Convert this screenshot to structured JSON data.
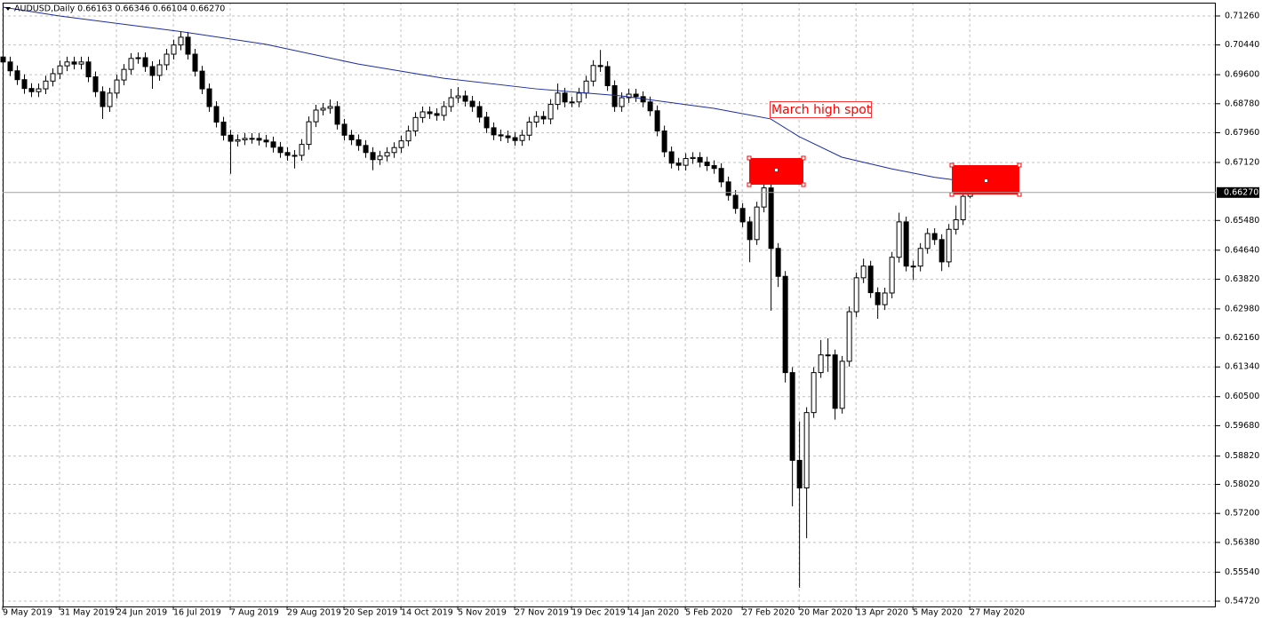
{
  "chart_data": {
    "type": "candlestick",
    "title": "AUDUSD,Daily  0.66163 0.66346 0.66104 0.66270",
    "annotation": "March high  spot",
    "open": [
      0.701,
      0.6996,
      0.6971,
      0.6946,
      0.6921,
      0.6912,
      0.692,
      0.6942,
      0.6963,
      0.6985,
      0.6996,
      0.699,
      0.6996,
      0.6954,
      0.6912,
      0.687,
      0.6908,
      0.6945,
      0.6975,
      0.7006,
      0.7008,
      0.6983,
      0.6958,
      0.6988,
      0.7018,
      0.7044,
      0.7066,
      0.7018,
      0.697,
      0.692,
      0.687,
      0.6826,
      0.6789,
      0.6772,
      0.6776,
      0.678,
      0.678,
      0.6775,
      0.677,
      0.6755,
      0.674,
      0.6732,
      0.6732,
      0.6763,
      0.6827,
      0.686,
      0.6865,
      0.687,
      0.682,
      0.6789,
      0.6776,
      0.676,
      0.674,
      0.672,
      0.673,
      0.674,
      0.6754,
      0.6773,
      0.6801,
      0.6839,
      0.6855,
      0.685,
      0.6845,
      0.687,
      0.6895,
      0.69,
      0.6885,
      0.687,
      0.684,
      0.681,
      0.679,
      0.6787,
      0.6782,
      0.6774,
      0.6789,
      0.6826,
      0.6842,
      0.6835,
      0.6876,
      0.6908,
      0.6883,
      0.6883,
      0.6908,
      0.6942,
      0.6986,
      0.6983,
      0.6929,
      0.687,
      0.6895,
      0.6905,
      0.6898,
      0.6883,
      0.6858,
      0.6801,
      0.6742,
      0.671,
      0.6704,
      0.6723,
      0.6726,
      0.6713,
      0.6703,
      0.6695,
      0.6657,
      0.6619,
      0.6582,
      0.6544,
      0.6494,
      0.6586,
      0.664,
      0.6469,
      0.639,
      0.6118,
      0.587,
      0.5792,
      0.6005,
      0.6118,
      0.6168,
      0.6168,
      0.6017,
      0.615,
      0.629,
      0.6386,
      0.6419,
      0.6344,
      0.631,
      0.6343,
      0.6444,
      0.6544,
      0.6419,
      0.6419,
      0.6469,
      0.6511,
      0.6494,
      0.6431,
      0.6523,
      0.655,
      0.66163
    ],
    "high": [
      0.7025,
      0.7011,
      0.6986,
      0.6961,
      0.6936,
      0.6935,
      0.6957,
      0.6978,
      0.7,
      0.7011,
      0.7011,
      0.7011,
      0.7011,
      0.6969,
      0.6927,
      0.6923,
      0.696,
      0.699,
      0.7021,
      0.7023,
      0.7023,
      0.6998,
      0.7003,
      0.7033,
      0.7059,
      0.7081,
      0.7081,
      0.7033,
      0.6985,
      0.6935,
      0.6885,
      0.6841,
      0.6804,
      0.6791,
      0.6795,
      0.6795,
      0.6795,
      0.679,
      0.6785,
      0.677,
      0.6755,
      0.6747,
      0.6778,
      0.6842,
      0.6875,
      0.688,
      0.689,
      0.6885,
      0.6835,
      0.6804,
      0.6791,
      0.6775,
      0.6755,
      0.6745,
      0.6755,
      0.6769,
      0.6788,
      0.6816,
      0.6854,
      0.687,
      0.687,
      0.6865,
      0.6885,
      0.692,
      0.6925,
      0.6915,
      0.69,
      0.6885,
      0.6855,
      0.6825,
      0.6805,
      0.6802,
      0.6797,
      0.6804,
      0.6841,
      0.6857,
      0.6857,
      0.6891,
      0.6935,
      0.6923,
      0.6898,
      0.6923,
      0.6957,
      0.7001,
      0.703,
      0.6998,
      0.6944,
      0.691,
      0.692,
      0.692,
      0.6913,
      0.6898,
      0.6873,
      0.6816,
      0.6757,
      0.6725,
      0.6738,
      0.6741,
      0.6741,
      0.6728,
      0.6718,
      0.671,
      0.6672,
      0.6634,
      0.6597,
      0.6559,
      0.6601,
      0.669,
      0.6655,
      0.6484,
      0.6405,
      0.6133,
      0.598,
      0.602,
      0.6133,
      0.621,
      0.6215,
      0.6183,
      0.6165,
      0.6305,
      0.6401,
      0.644,
      0.6434,
      0.6359,
      0.6358,
      0.6459,
      0.657,
      0.6559,
      0.6434,
      0.6484,
      0.6526,
      0.6526,
      0.6509,
      0.6538,
      0.659,
      0.67,
      0.66346
    ],
    "low": [
      0.6981,
      0.6956,
      0.6931,
      0.6906,
      0.6897,
      0.6897,
      0.6905,
      0.6927,
      0.6948,
      0.697,
      0.6975,
      0.6975,
      0.6939,
      0.6897,
      0.6835,
      0.6855,
      0.6893,
      0.693,
      0.696,
      0.6991,
      0.6968,
      0.692,
      0.6943,
      0.6973,
      0.7003,
      0.7029,
      0.7003,
      0.6955,
      0.6905,
      0.6855,
      0.6811,
      0.6774,
      0.668,
      0.6757,
      0.6761,
      0.6765,
      0.676,
      0.6755,
      0.674,
      0.6725,
      0.6717,
      0.6695,
      0.6717,
      0.6748,
      0.6812,
      0.6845,
      0.685,
      0.6805,
      0.6774,
      0.6761,
      0.6745,
      0.6725,
      0.669,
      0.6705,
      0.6715,
      0.6725,
      0.6739,
      0.6758,
      0.6786,
      0.6824,
      0.6835,
      0.683,
      0.683,
      0.6855,
      0.688,
      0.687,
      0.6855,
      0.6825,
      0.6795,
      0.6775,
      0.6772,
      0.6767,
      0.6759,
      0.6759,
      0.6774,
      0.6811,
      0.682,
      0.682,
      0.6861,
      0.6868,
      0.6868,
      0.6868,
      0.6893,
      0.6927,
      0.6968,
      0.6914,
      0.6855,
      0.6855,
      0.688,
      0.6883,
      0.6868,
      0.6843,
      0.6786,
      0.6727,
      0.6695,
      0.6689,
      0.6689,
      0.6708,
      0.6698,
      0.6688,
      0.668,
      0.6642,
      0.6604,
      0.6567,
      0.6529,
      0.643,
      0.6479,
      0.6571,
      0.6293,
      0.636,
      0.609,
      0.574,
      0.551,
      0.565,
      0.599,
      0.6103,
      0.612,
      0.5985,
      0.6002,
      0.6135,
      0.6275,
      0.6371,
      0.6329,
      0.627,
      0.6295,
      0.6328,
      0.6429,
      0.6404,
      0.638,
      0.6404,
      0.6454,
      0.6479,
      0.6405,
      0.6416,
      0.6508,
      0.6535,
      0.66104
    ],
    "close": [
      0.6996,
      0.6971,
      0.6946,
      0.6921,
      0.6912,
      0.692,
      0.6942,
      0.6963,
      0.6985,
      0.6996,
      0.699,
      0.6996,
      0.6954,
      0.6912,
      0.687,
      0.6908,
      0.6945,
      0.6975,
      0.7006,
      0.7008,
      0.6983,
      0.6958,
      0.6988,
      0.7018,
      0.7044,
      0.7066,
      0.7018,
      0.697,
      0.692,
      0.687,
      0.6826,
      0.6789,
      0.6772,
      0.6776,
      0.678,
      0.678,
      0.6775,
      0.677,
      0.6755,
      0.674,
      0.6732,
      0.6732,
      0.6763,
      0.6827,
      0.686,
      0.6865,
      0.687,
      0.682,
      0.6789,
      0.6776,
      0.676,
      0.674,
      0.672,
      0.673,
      0.674,
      0.6754,
      0.6773,
      0.6801,
      0.6839,
      0.6855,
      0.685,
      0.6845,
      0.687,
      0.6895,
      0.69,
      0.6885,
      0.687,
      0.684,
      0.681,
      0.679,
      0.6787,
      0.6782,
      0.6774,
      0.6789,
      0.6826,
      0.6842,
      0.6835,
      0.6876,
      0.6908,
      0.6883,
      0.6883,
      0.6908,
      0.6942,
      0.6986,
      0.6983,
      0.6929,
      0.687,
      0.6895,
      0.6905,
      0.6898,
      0.6883,
      0.6858,
      0.6801,
      0.6742,
      0.671,
      0.6704,
      0.6723,
      0.6726,
      0.6713,
      0.6703,
      0.6695,
      0.6657,
      0.6619,
      0.6582,
      0.6544,
      0.6494,
      0.6586,
      0.664,
      0.6469,
      0.639,
      0.6118,
      0.587,
      0.5792,
      0.6005,
      0.6118,
      0.6168,
      0.6168,
      0.6017,
      0.615,
      0.629,
      0.6386,
      0.6419,
      0.6344,
      0.631,
      0.6343,
      0.6444,
      0.6544,
      0.6419,
      0.6419,
      0.6469,
      0.6511,
      0.6494,
      0.6431,
      0.6523,
      0.655,
      0.66163,
      0.6627
    ],
    "ma": {
      "color": "#1c2ca0",
      "x": [
        0,
        8,
        25,
        37,
        50,
        62,
        75,
        87,
        100,
        108,
        112,
        118,
        125,
        131,
        136
      ],
      "values": [
        0.7151,
        0.7126,
        0.7082,
        0.7046,
        0.699,
        0.695,
        0.692,
        0.69,
        0.6865,
        0.6835,
        0.6785,
        0.6727,
        0.6694,
        0.667,
        0.6657
      ]
    },
    "current_price": {
      "value": 0.6627,
      "label": "0.66270"
    },
    "xlim": [
      0,
      170.6
    ],
    "ylim": [
      0.5457,
      0.71636
    ],
    "xticks": [
      {
        "value": 0,
        "label": "9 May 2019"
      },
      {
        "value": 8,
        "label": "31 May 2019"
      },
      {
        "value": 16,
        "label": "24 Jun 2019"
      },
      {
        "value": 24,
        "label": "16 Jul 2019"
      },
      {
        "value": 32,
        "label": "7 Aug 2019"
      },
      {
        "value": 40,
        "label": "29 Aug 2019"
      },
      {
        "value": 48,
        "label": "20 Sep 2019"
      },
      {
        "value": 56,
        "label": "14 Oct 2019"
      },
      {
        "value": 64,
        "label": "5 Nov 2019"
      },
      {
        "value": 72,
        "label": "27 Nov 2019"
      },
      {
        "value": 80,
        "label": "19 Dec 2019"
      },
      {
        "value": 88,
        "label": "14 Jan 2020"
      },
      {
        "value": 96,
        "label": "5 Feb 2020"
      },
      {
        "value": 104,
        "label": "27 Feb 2020"
      },
      {
        "value": 112,
        "label": "20 Mar 2020"
      },
      {
        "value": 120,
        "label": "13 Apr 2020"
      },
      {
        "value": 128,
        "label": "5 May 2020"
      },
      {
        "value": 136,
        "label": "27 May 2020"
      }
    ],
    "yticks": [
      {
        "value": 0.7126,
        "label": "0.71260"
      },
      {
        "value": 0.7044,
        "label": "0.70440"
      },
      {
        "value": 0.696,
        "label": "0.69600"
      },
      {
        "value": 0.6878,
        "label": "0.68780"
      },
      {
        "value": 0.6796,
        "label": "0.67960"
      },
      {
        "value": 0.6712,
        "label": "0.67120"
      },
      {
        "value": 0.6548,
        "label": "0.65480"
      },
      {
        "value": 0.6464,
        "label": "0.64640"
      },
      {
        "value": 0.6382,
        "label": "0.63820"
      },
      {
        "value": 0.6298,
        "label": "0.62980"
      },
      {
        "value": 0.6216,
        "label": "0.62160"
      },
      {
        "value": 0.6134,
        "label": "0.61340"
      },
      {
        "value": 0.605,
        "label": "0.60500"
      },
      {
        "value": 0.5968,
        "label": "0.59680"
      },
      {
        "value": 0.5882,
        "label": "0.58820"
      },
      {
        "value": 0.5802,
        "label": "0.58020"
      },
      {
        "value": 0.572,
        "label": "0.57200"
      },
      {
        "value": 0.5638,
        "label": "0.56380"
      },
      {
        "value": 0.5554,
        "label": "0.55540"
      },
      {
        "value": 0.5472,
        "label": "0.54720"
      }
    ],
    "grid": true
  }
}
